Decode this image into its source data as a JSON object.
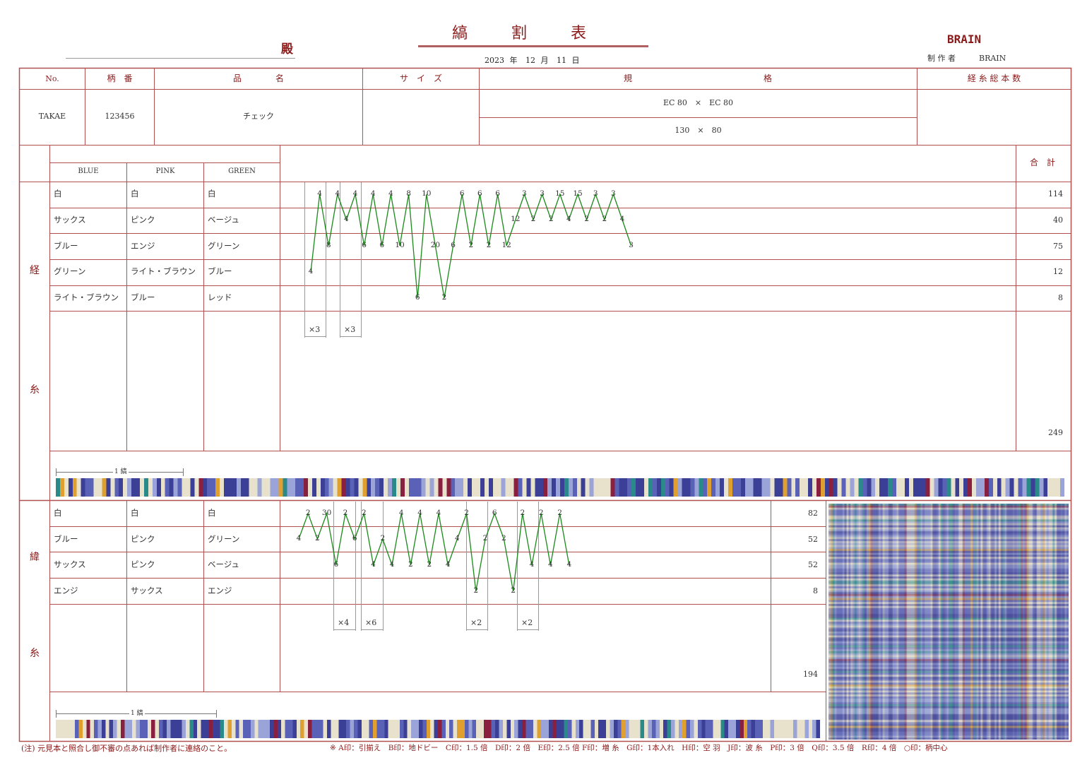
{
  "header": {
    "addressee_suffix": "殿",
    "title": "縞　　割　　表",
    "date": {
      "year": "2023",
      "year_unit": "年",
      "month": "12",
      "month_unit": "月",
      "day": "11",
      "day_unit": "日"
    },
    "company": "BRAIN",
    "maker_label": "制 作 者",
    "maker": "BRAIN"
  },
  "table_header": {
    "no": "No.",
    "pattern_no": "柄　番",
    "product_name": "品　　　　名",
    "size": "サ　イ　ズ",
    "spec_left": "規",
    "spec_right": "格",
    "warp_total": "経 糸 総 本 数"
  },
  "table_row": {
    "no": "TAKAE",
    "pattern_no": "123456",
    "product_name": "チェック",
    "spec_line1": "EC 80　×　EC 80",
    "spec_line2": "130　×　80",
    "size": "",
    "warp_total": ""
  },
  "colorways": [
    "BLUE",
    "PINK",
    "GREEN"
  ],
  "total_label": "合　計",
  "warp": {
    "label_top": "経",
    "label_bottom": "糸",
    "rows": [
      {
        "c1": "白",
        "c2": "白",
        "c3": "白",
        "total": "114"
      },
      {
        "c1": "サックス",
        "c2": "ピンク",
        "c3": "ベージュ",
        "total": "40"
      },
      {
        "c1": "ブルー",
        "c2": "エンジ",
        "c3": "グリーン",
        "total": "75"
      },
      {
        "c1": "グリーン",
        "c2": "ライト・ブラウン",
        "c3": "ブルー",
        "total": "12"
      },
      {
        "c1": "ライト・ブラウン",
        "c2": "ブルー",
        "c3": "レッド",
        "total": "8"
      }
    ],
    "grand_total": "249",
    "repeats": [
      "×3",
      "×3"
    ],
    "repeat_label": "1 縞"
  },
  "weft": {
    "label_top": "緯",
    "label_bottom": "糸",
    "rows": [
      {
        "c1": "白",
        "c2": "白",
        "c3": "白",
        "total": "82"
      },
      {
        "c1": "ブルー",
        "c2": "ピンク",
        "c3": "グリーン",
        "total": "52"
      },
      {
        "c1": "サックス",
        "c2": "ピンク",
        "c3": "ベージュ",
        "total": "52"
      },
      {
        "c1": "エンジ",
        "c2": "サックス",
        "c3": "エンジ",
        "total": "8"
      }
    ],
    "grand_total": "194",
    "repeats": [
      "×4",
      "×6",
      "×2",
      "×2"
    ],
    "repeat_label": "1 縞"
  },
  "warp_sequence": [
    {
      "row": 3,
      "v": "4"
    },
    {
      "row": 0,
      "v": "4"
    },
    {
      "row": 2,
      "v": "8"
    },
    {
      "row": 0,
      "v": "4"
    },
    {
      "row": 1,
      "v": "4"
    },
    {
      "row": 0,
      "v": "4"
    },
    {
      "row": 2,
      "v": "6"
    },
    {
      "row": 0,
      "v": "4"
    },
    {
      "row": 2,
      "v": "6"
    },
    {
      "row": 0,
      "v": "4"
    },
    {
      "row": 2,
      "v": "10"
    },
    {
      "row": 0,
      "v": "8"
    },
    {
      "row": 4,
      "v": "6"
    },
    {
      "row": 0,
      "v": "10"
    },
    {
      "row": 2,
      "v": "20"
    },
    {
      "row": 4,
      "v": "2"
    },
    {
      "row": 2,
      "v": "6"
    },
    {
      "row": 0,
      "v": "6"
    },
    {
      "row": 2,
      "v": "2"
    },
    {
      "row": 0,
      "v": "6"
    },
    {
      "row": 2,
      "v": "2"
    },
    {
      "row": 0,
      "v": "6"
    },
    {
      "row": 2,
      "v": "12"
    },
    {
      "row": 1,
      "v": "12"
    },
    {
      "row": 0,
      "v": "3"
    },
    {
      "row": 1,
      "v": "2"
    },
    {
      "row": 0,
      "v": "3"
    },
    {
      "row": 1,
      "v": "2"
    },
    {
      "row": 0,
      "v": "15"
    },
    {
      "row": 1,
      "v": "4"
    },
    {
      "row": 0,
      "v": "15"
    },
    {
      "row": 1,
      "v": "2"
    },
    {
      "row": 0,
      "v": "3"
    },
    {
      "row": 1,
      "v": "2"
    },
    {
      "row": 0,
      "v": "3"
    },
    {
      "row": 1,
      "v": "4"
    },
    {
      "row": 2,
      "v": "3"
    }
  ],
  "weft_sequence": [
    {
      "row": 1,
      "v": "4"
    },
    {
      "row": 0,
      "v": "2"
    },
    {
      "row": 1,
      "v": "2"
    },
    {
      "row": 0,
      "v": "30"
    },
    {
      "row": 2,
      "v": "6"
    },
    {
      "row": 0,
      "v": "2"
    },
    {
      "row": 1,
      "v": "6"
    },
    {
      "row": 0,
      "v": "2"
    },
    {
      "row": 2,
      "v": "4"
    },
    {
      "row": 1,
      "v": "2"
    },
    {
      "row": 2,
      "v": "4"
    },
    {
      "row": 0,
      "v": "4"
    },
    {
      "row": 2,
      "v": "2"
    },
    {
      "row": 0,
      "v": "4"
    },
    {
      "row": 2,
      "v": "2"
    },
    {
      "row": 0,
      "v": "4"
    },
    {
      "row": 2,
      "v": "4"
    },
    {
      "row": 1,
      "v": "4"
    },
    {
      "row": 0,
      "v": "2"
    },
    {
      "row": 3,
      "v": "2"
    },
    {
      "row": 1,
      "v": "2"
    },
    {
      "row": 0,
      "v": "6"
    },
    {
      "row": 1,
      "v": "2"
    },
    {
      "row": 3,
      "v": "2"
    },
    {
      "row": 0,
      "v": "2"
    },
    {
      "row": 2,
      "v": "4"
    },
    {
      "row": 0,
      "v": "2"
    },
    {
      "row": 2,
      "v": "4"
    },
    {
      "row": 0,
      "v": "2"
    },
    {
      "row": 2,
      "v": "4"
    }
  ],
  "palette": {
    "line_red": "#b05050",
    "zigzag": "#1a8a1a",
    "cream": "#e8e2cc",
    "navy": "#3b3f96",
    "blue": "#5a62b8",
    "lavender": "#9aa4d8",
    "teal": "#2a8a8a",
    "orange": "#e0a030",
    "wine": "#8a2040"
  },
  "footer": {
    "note": "(注) 元見本と照合し御不審の点あれば制作者に連絡のこと。",
    "legend": "※ A印：引揃え　B印：地ドビー　C印：1.5 倍　D印：2 倍　E印：2.5 倍 F印：増 糸　G印：1本入れ　H印：空 羽　J印：波 糸　P印：3 倍　Q印：3.5 倍　R印：4 倍　○印：柄中心"
  }
}
